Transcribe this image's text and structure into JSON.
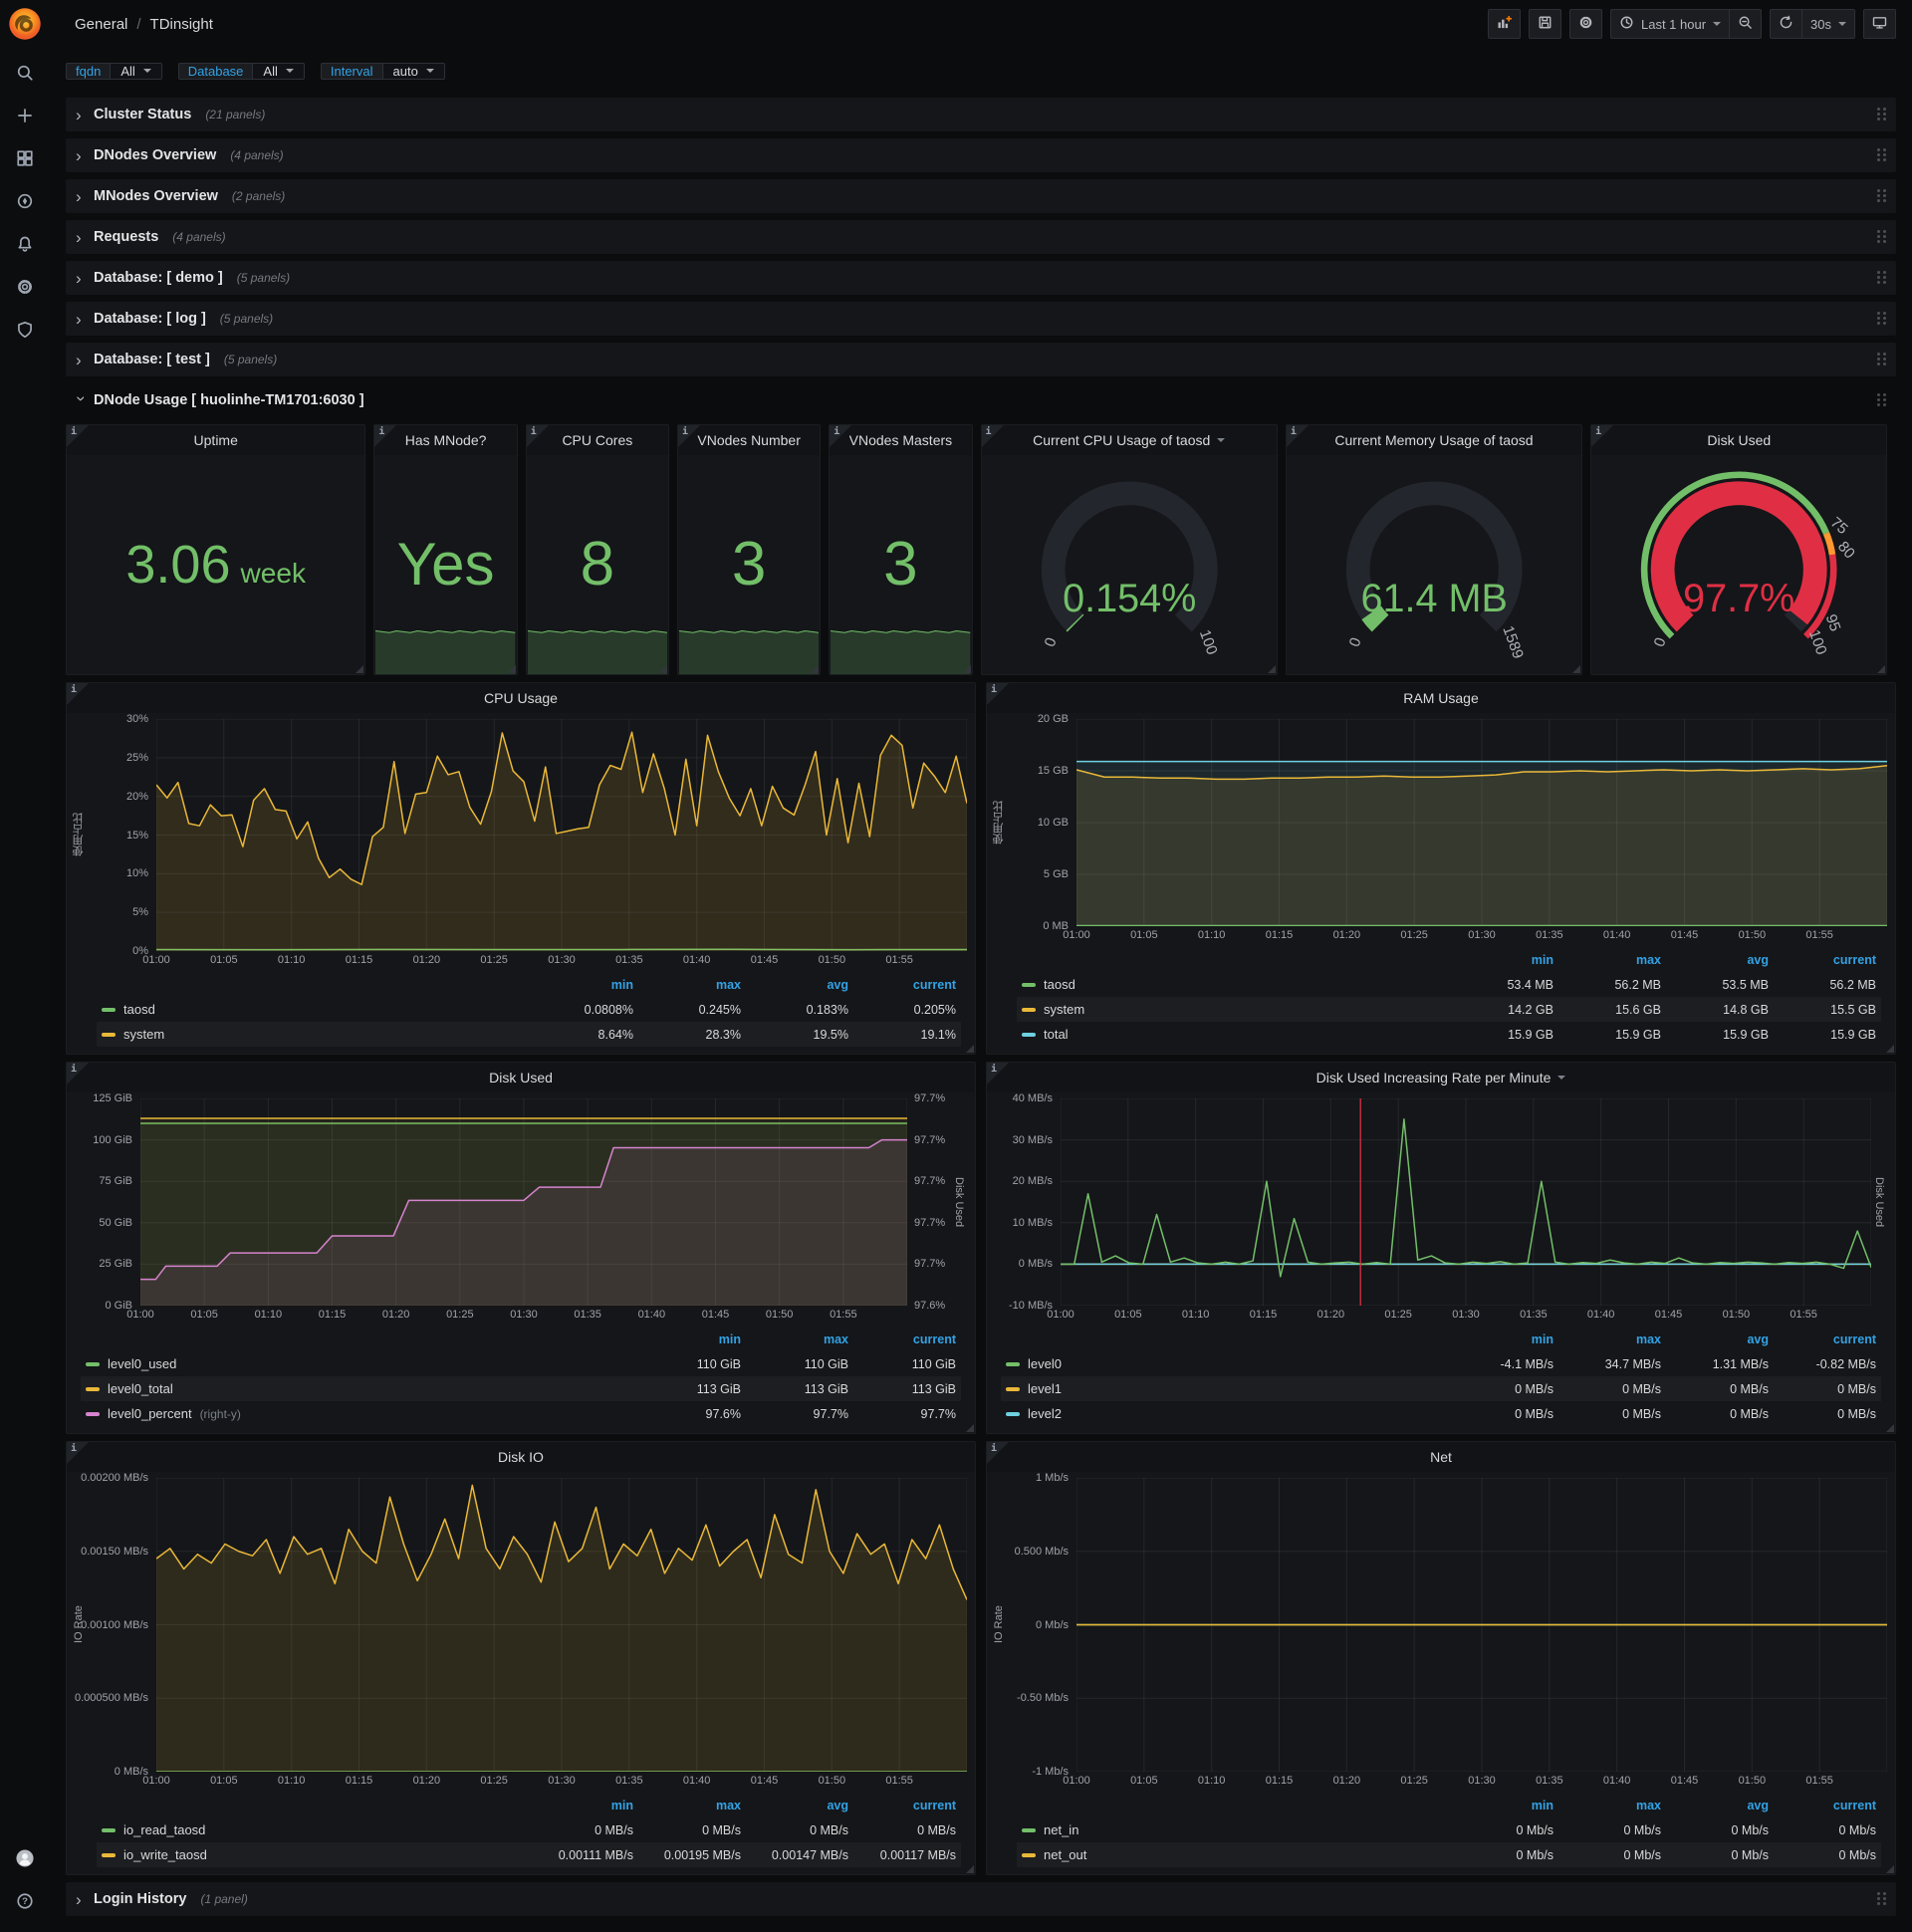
{
  "colors": {
    "green": "#73bf69",
    "yellow": "#eab839",
    "blue": "#6ed0e0",
    "magenta": "#d683ce",
    "red": "#e02f44",
    "orange": "#ff9830",
    "link_blue": "#33a2e5",
    "gauge_bg": "#23262c"
  },
  "app": {
    "nav": {
      "breadcrumb_section": "General",
      "breadcrumb_sep": "/",
      "breadcrumb_page": "TDinsight",
      "time_range": "Last 1 hour",
      "refresh_interval": "30s",
      "left_icon": "dashboard-grid",
      "title_icons": [
        "star",
        "share"
      ],
      "right_icons": [
        "panel-add",
        "save",
        "gear"
      ]
    },
    "sidebar": {
      "top_icons": [
        "search",
        "plus",
        "dashboards",
        "compass",
        "bell",
        "gear",
        "shield"
      ],
      "bottom_icons": [
        "avatar",
        "help"
      ]
    }
  },
  "submenu": {
    "variables": [
      {
        "label": "fqdn",
        "value": "All"
      },
      {
        "label": "Database",
        "value": "All"
      },
      {
        "label": "Interval",
        "value": "auto"
      }
    ]
  },
  "rows": [
    {
      "title": "Cluster Status",
      "count": "(21 panels)"
    },
    {
      "title": "DNodes Overview",
      "count": "(4 panels)"
    },
    {
      "title": "MNodes Overview",
      "count": "(2 panels)"
    },
    {
      "title": "Requests",
      "count": "(4 panels)"
    },
    {
      "title": "Database: [ demo ]",
      "count": "(5 panels)"
    },
    {
      "title": "Database: [ log ]",
      "count": "(5 panels)"
    },
    {
      "title": "Database: [ test ]",
      "count": "(5 panels)"
    }
  ],
  "dnode_row": {
    "title": "DNode Usage [ huolinhe-TM1701:6030 ]"
  },
  "login_row": {
    "title": "Login History",
    "count": "(1 panel)"
  },
  "stats": [
    {
      "title": "Uptime",
      "value": "3.06",
      "unit": "week",
      "sparkline": false,
      "size": 54
    },
    {
      "title": "Has MNode?",
      "value": "Yes",
      "unit": "",
      "sparkline": true,
      "size": 60
    },
    {
      "title": "CPU Cores",
      "value": "8",
      "unit": "",
      "sparkline": true,
      "size": 62
    },
    {
      "title": "VNodes Number",
      "value": "3",
      "unit": "",
      "sparkline": true,
      "size": 62
    },
    {
      "title": "VNodes Masters",
      "value": "3",
      "unit": "",
      "sparkline": true,
      "size": 62
    }
  ],
  "gauges": [
    {
      "name": "cpu-gauge",
      "title": "Current CPU Usage of taosd",
      "menu_caret": true,
      "value": "0.154%",
      "fraction": 0.0016,
      "value_color": "#73bf69",
      "arc_color": "#73bf69",
      "scale_labels": [
        {
          "t": "0",
          "f": 0
        },
        {
          "t": "100",
          "f": 1
        }
      ],
      "thresholds": []
    },
    {
      "name": "memory-gauge",
      "title": "Current Memory Usage of taosd",
      "menu_caret": false,
      "value": "61.4 MB",
      "fraction": 0.0386,
      "value_color": "#73bf69",
      "arc_color": "#73bf69",
      "scale_labels": [
        {
          "t": "0",
          "f": 0
        },
        {
          "t": "1589",
          "f": 1
        }
      ],
      "thresholds": []
    },
    {
      "name": "disk-gauge",
      "title": "Disk Used",
      "menu_caret": false,
      "value": "97.7%",
      "fraction": 0.977,
      "value_color": "#e02f44",
      "arc_color": "#e02f44",
      "scale_labels": [
        {
          "t": "0",
          "f": 0
        },
        {
          "t": "75",
          "f": 0.75
        },
        {
          "t": "80",
          "f": 0.8
        },
        {
          "t": "95",
          "f": 0.95
        },
        {
          "t": "100",
          "f": 1
        }
      ],
      "thresholds": [
        {
          "f0": 0,
          "f1": 0.75,
          "c": "#73bf69"
        },
        {
          "f0": 0.75,
          "f1": 0.8,
          "c": "#ff9830"
        },
        {
          "f0": 0.8,
          "f1": 1,
          "c": "#e02f44"
        }
      ]
    }
  ],
  "chart_data": [
    {
      "type": "line",
      "name": "cpu-usage",
      "title": "CPU Usage",
      "ylabel": "使用占比",
      "ylim": [
        0,
        30
      ],
      "yticks": [
        "30%",
        "25%",
        "20%",
        "15%",
        "10%",
        "5%",
        "0%"
      ],
      "xticks": [
        "01:00",
        "01:05",
        "01:10",
        "01:15",
        "01:20",
        "01:25",
        "01:30",
        "01:35",
        "01:40",
        "01:45",
        "01:50",
        "01:55"
      ],
      "series": [
        {
          "name": "taosd",
          "color": "#73bf69",
          "fill": 0,
          "values": [
            0.2,
            0.18,
            0.21,
            0.19,
            0.2,
            0.22,
            0.18,
            0.2
          ]
        },
        {
          "name": "system",
          "color": "#eab839",
          "fill": 0.14,
          "values": [
            21.5,
            19.8,
            21.8,
            16.5,
            16.2,
            18.9,
            17.5,
            17.6,
            13.5,
            19.5,
            21.0,
            18.3,
            18.1,
            14.5,
            16.7,
            12.0,
            9.5,
            10.6,
            9.3,
            8.6,
            14.8,
            16.0,
            24.5,
            15.2,
            20.3,
            20.5,
            25.2,
            22.8,
            23.2,
            18.6,
            16.4,
            20.6,
            28.2,
            23.3,
            21.9,
            16.8,
            23.8,
            15.2,
            15.5,
            15.8,
            16.0,
            21.5,
            24.0,
            23.5,
            28.3,
            20.5,
            25.5,
            21.0,
            15.0,
            24.8,
            16.2,
            27.9,
            23.2,
            19.8,
            17.5,
            21.0,
            16.2,
            21.3,
            18.5,
            17.6,
            21.4,
            25.8,
            15.0,
            22.3,
            14.0,
            21.7,
            14.8,
            25.3,
            27.9,
            26.6,
            18.5,
            24.3,
            22.6,
            20.5,
            25.2,
            19.1
          ]
        }
      ],
      "legend": {
        "headers": [
          "min",
          "max",
          "avg",
          "current"
        ],
        "rows": [
          {
            "name": "taosd",
            "color": "#73bf69",
            "suffix": "",
            "values": [
              "0.0808%",
              "0.245%",
              "0.183%",
              "0.205%"
            ]
          },
          {
            "name": "system",
            "color": "#eab839",
            "suffix": "",
            "values": [
              "8.64%",
              "28.3%",
              "19.5%",
              "19.1%"
            ]
          }
        ]
      }
    },
    {
      "type": "line",
      "name": "ram-usage",
      "title": "RAM Usage",
      "ylabel": "使用占比",
      "ylim": [
        0,
        20
      ],
      "yticks": [
        "20 GB",
        "15 GB",
        "10 GB",
        "5 GB",
        "0 MB"
      ],
      "xticks": [
        "01:00",
        "01:05",
        "01:10",
        "01:15",
        "01:20",
        "01:25",
        "01:30",
        "01:35",
        "01:40",
        "01:45",
        "01:50",
        "01:55"
      ],
      "series": [
        {
          "name": "total",
          "color": "#6ed0e0",
          "fill": 0.1,
          "values": [
            15.9,
            15.9
          ]
        },
        {
          "name": "system",
          "color": "#eab839",
          "fill": 0.13,
          "values": [
            15.1,
            14.4,
            14.4,
            14.3,
            14.3,
            14.2,
            14.2,
            14.3,
            14.3,
            14.4,
            14.4,
            14.5,
            14.4,
            14.4,
            14.5,
            14.6,
            14.9,
            14.9,
            15.0,
            14.9,
            15.0,
            15.1,
            15.0,
            15.1,
            15.0,
            15.1,
            15.2,
            15.1,
            15.2,
            15.5
          ]
        },
        {
          "name": "taosd",
          "color": "#73bf69",
          "fill": 0,
          "values": [
            0.053,
            0.053
          ]
        }
      ],
      "legend": {
        "headers": [
          "min",
          "max",
          "avg",
          "current"
        ],
        "rows": [
          {
            "name": "taosd",
            "color": "#73bf69",
            "suffix": "",
            "values": [
              "53.4 MB",
              "56.2 MB",
              "53.5 MB",
              "56.2 MB"
            ]
          },
          {
            "name": "system",
            "color": "#eab839",
            "suffix": "",
            "values": [
              "14.2 GB",
              "15.6 GB",
              "14.8 GB",
              "15.5 GB"
            ]
          },
          {
            "name": "total",
            "color": "#6ed0e0",
            "suffix": "",
            "values": [
              "15.9 GB",
              "15.9 GB",
              "15.9 GB",
              "15.9 GB"
            ]
          }
        ]
      }
    },
    {
      "type": "line",
      "name": "disk-used",
      "title": "Disk Used",
      "ylabel": "",
      "ylabel_right": "Disk Used",
      "ylim": [
        0,
        125
      ],
      "yticks": [
        "125 GiB",
        "100 GiB",
        "75 GiB",
        "50 GiB",
        "25 GiB",
        "0 GiB"
      ],
      "ylim_right": [
        97.58,
        97.7375
      ],
      "yticks_right": [
        "97.7%",
        "97.7%",
        "97.7%",
        "97.7%",
        "97.7%",
        "97.6%"
      ],
      "xticks": [
        "01:00",
        "01:05",
        "01:10",
        "01:15",
        "01:20",
        "01:25",
        "01:30",
        "01:35",
        "01:40",
        "01:45",
        "01:50",
        "01:55"
      ],
      "series": [
        {
          "name": "level0_used",
          "color": "#73bf69",
          "fill": 0.08,
          "values": [
            110,
            110
          ]
        },
        {
          "name": "level0_total",
          "color": "#eab839",
          "fill": 0.08,
          "values": [
            113,
            113
          ]
        },
        {
          "name": "level0_percent",
          "color": "#d683ce",
          "fill": 0.1,
          "axis": "right",
          "x": [
            0,
            0.02,
            0.033,
            0.1,
            0.117,
            0.23,
            0.25,
            0.33,
            0.35,
            0.5,
            0.52,
            0.6,
            0.617,
            0.95,
            0.967,
            1.0
          ],
          "values": [
            97.6,
            97.6,
            97.61,
            97.61,
            97.62,
            97.62,
            97.633,
            97.633,
            97.66,
            97.66,
            97.67,
            97.67,
            97.7,
            97.7,
            97.706,
            97.706
          ]
        }
      ],
      "legend": {
        "headers": [
          "min",
          "max",
          "current"
        ],
        "rows": [
          {
            "name": "level0_used",
            "color": "#73bf69",
            "suffix": "",
            "values": [
              "110 GiB",
              "110 GiB",
              "110 GiB"
            ]
          },
          {
            "name": "level0_total",
            "color": "#eab839",
            "suffix": "",
            "values": [
              "113 GiB",
              "113 GiB",
              "113 GiB"
            ]
          },
          {
            "name": "level0_percent",
            "color": "#d683ce",
            "suffix": "(right-y)",
            "values": [
              "97.6%",
              "97.7%",
              "97.7%"
            ]
          }
        ]
      }
    },
    {
      "type": "line",
      "name": "disk-rate",
      "title": "Disk Used Increasing Rate per Minute",
      "title_caret": true,
      "ylabel": "",
      "ylabel_right": "Disk Used",
      "ylim": [
        -10,
        40
      ],
      "yticks": [
        "40 MB/s",
        "30 MB/s",
        "20 MB/s",
        "10 MB/s",
        "0 MB/s",
        "-10 MB/s"
      ],
      "annotation_x": 0.37,
      "xticks": [
        "01:00",
        "01:05",
        "01:10",
        "01:15",
        "01:20",
        "01:25",
        "01:30",
        "01:35",
        "01:40",
        "01:45",
        "01:50",
        "01:55"
      ],
      "series": [
        {
          "name": "level1",
          "color": "#eab839",
          "fill": 0,
          "values": [
            0,
            0
          ]
        },
        {
          "name": "level2",
          "color": "#6ed0e0",
          "fill": 0,
          "values": [
            0,
            0
          ]
        },
        {
          "name": "level0",
          "color": "#73bf69",
          "fill": 0,
          "values": [
            0,
            0,
            17,
            0.5,
            2,
            0.3,
            0,
            12,
            0.5,
            1.5,
            0.3,
            0,
            0.5,
            0,
            0.8,
            20,
            -3,
            11,
            0.5,
            0,
            0.3,
            0.5,
            0,
            0.4,
            0,
            35,
            1,
            2,
            0.3,
            0,
            0.5,
            0.2,
            0.6,
            0,
            0.3,
            20,
            0.5,
            0,
            0.4,
            0.2,
            1,
            0.3,
            0,
            0.5,
            0.2,
            1.5,
            0.3,
            0,
            0.4,
            0.2,
            0.5,
            0.3,
            0,
            0.4,
            0.2,
            0.5,
            0,
            -1,
            8,
            -0.8
          ]
        }
      ],
      "legend": {
        "headers": [
          "min",
          "max",
          "avg",
          "current"
        ],
        "rows": [
          {
            "name": "level0",
            "color": "#73bf69",
            "suffix": "",
            "values": [
              "-4.1 MB/s",
              "34.7 MB/s",
              "1.31 MB/s",
              "-0.82 MB/s"
            ]
          },
          {
            "name": "level1",
            "color": "#eab839",
            "suffix": "",
            "values": [
              "0 MB/s",
              "0 MB/s",
              "0 MB/s",
              "0 MB/s"
            ]
          },
          {
            "name": "level2",
            "color": "#6ed0e0",
            "suffix": "",
            "values": [
              "0 MB/s",
              "0 MB/s",
              "0 MB/s",
              "0 MB/s"
            ]
          }
        ]
      }
    },
    {
      "type": "line",
      "name": "disk-io",
      "title": "Disk IO",
      "ylabel": "IO Rate",
      "ylim": [
        0,
        0.002
      ],
      "yticks": [
        "0.00200 MB/s",
        "0.00150 MB/s",
        "0.00100 MB/s",
        "0.000500 MB/s",
        "0 MB/s"
      ],
      "xticks": [
        "01:00",
        "01:05",
        "01:10",
        "01:15",
        "01:20",
        "01:25",
        "01:30",
        "01:35",
        "01:40",
        "01:45",
        "01:50",
        "01:55"
      ],
      "series": [
        {
          "name": "io_read_taosd",
          "color": "#73bf69",
          "fill": 0,
          "values": [
            0,
            0
          ]
        },
        {
          "name": "io_write_taosd",
          "color": "#eab839",
          "fill": 0.13,
          "values": [
            0.00145,
            0.00152,
            0.00138,
            0.00148,
            0.00142,
            0.00155,
            0.0015,
            0.00147,
            0.00158,
            0.00135,
            0.0016,
            0.00148,
            0.00152,
            0.00128,
            0.00165,
            0.0015,
            0.00142,
            0.00187,
            0.00155,
            0.0013,
            0.00148,
            0.00172,
            0.00145,
            0.00195,
            0.00152,
            0.00138,
            0.0016,
            0.00148,
            0.00129,
            0.0017,
            0.00143,
            0.00152,
            0.0018,
            0.00138,
            0.00155,
            0.00147,
            0.00165,
            0.00135,
            0.00152,
            0.00144,
            0.00168,
            0.0014,
            0.0015,
            0.00158,
            0.00132,
            0.00175,
            0.00148,
            0.00142,
            0.00192,
            0.0015,
            0.00135,
            0.00162,
            0.00148,
            0.00155,
            0.00128,
            0.00158,
            0.00145,
            0.00168,
            0.00138,
            0.00117
          ]
        }
      ],
      "legend": {
        "headers": [
          "min",
          "max",
          "avg",
          "current"
        ],
        "rows": [
          {
            "name": "io_read_taosd",
            "color": "#73bf69",
            "suffix": "",
            "values": [
              "0 MB/s",
              "0 MB/s",
              "0 MB/s",
              "0 MB/s"
            ]
          },
          {
            "name": "io_write_taosd",
            "color": "#eab839",
            "suffix": "",
            "values": [
              "0.00111 MB/s",
              "0.00195 MB/s",
              "0.00147 MB/s",
              "0.00117 MB/s"
            ]
          }
        ]
      }
    },
    {
      "type": "line",
      "name": "net",
      "title": "Net",
      "ylabel": "IO Rate",
      "ylim": [
        -1,
        1
      ],
      "yticks": [
        "1 Mb/s",
        "0.500 Mb/s",
        "0 Mb/s",
        "-0.50 Mb/s",
        "-1 Mb/s"
      ],
      "xticks": [
        "01:00",
        "01:05",
        "01:10",
        "01:15",
        "01:20",
        "01:25",
        "01:30",
        "01:35",
        "01:40",
        "01:45",
        "01:50",
        "01:55"
      ],
      "series": [
        {
          "name": "net_in",
          "color": "#73bf69",
          "fill": 0,
          "values": [
            0,
            0
          ]
        },
        {
          "name": "net_out",
          "color": "#eab839",
          "fill": 0,
          "values": [
            0,
            0
          ]
        }
      ],
      "legend": {
        "headers": [
          "min",
          "max",
          "avg",
          "current"
        ],
        "rows": [
          {
            "name": "net_in",
            "color": "#73bf69",
            "suffix": "",
            "values": [
              "0 Mb/s",
              "0 Mb/s",
              "0 Mb/s",
              "0 Mb/s"
            ]
          },
          {
            "name": "net_out",
            "color": "#eab839",
            "suffix": "",
            "values": [
              "0 Mb/s",
              "0 Mb/s",
              "0 Mb/s",
              "0 Mb/s"
            ]
          }
        ]
      }
    }
  ]
}
